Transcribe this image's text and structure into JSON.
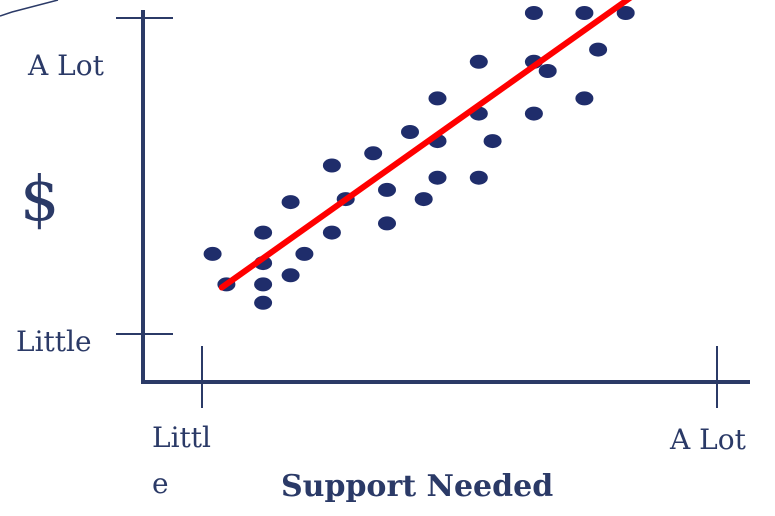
{
  "chart_data": {
    "type": "scatter",
    "xlabel": "Support Needed",
    "ylabel": "$",
    "x_tick_labels": {
      "low_line1": "Littl",
      "low_line2": "e",
      "high": "A Lot"
    },
    "y_tick_labels": {
      "low": "Little",
      "high": "A Lot"
    },
    "xlim": [
      0,
      10
    ],
    "ylim": [
      0,
      10
    ],
    "grid": false,
    "legend": "none",
    "colors": {
      "axis": "#2b3a67",
      "points": "#1f2d6b",
      "trendline": "#ff0000",
      "labels": "#2b3a67"
    },
    "points": [
      {
        "x": 0.1,
        "y": 2.1
      },
      {
        "x": 0.4,
        "y": 1.1
      },
      {
        "x": 1.2,
        "y": 2.8
      },
      {
        "x": 1.2,
        "y": 1.8
      },
      {
        "x": 1.2,
        "y": 1.1
      },
      {
        "x": 1.2,
        "y": 0.5
      },
      {
        "x": 1.8,
        "y": 3.8
      },
      {
        "x": 1.8,
        "y": 1.4
      },
      {
        "x": 2.1,
        "y": 2.1
      },
      {
        "x": 2.7,
        "y": 2.8
      },
      {
        "x": 2.7,
        "y": 5.0
      },
      {
        "x": 3.0,
        "y": 3.9
      },
      {
        "x": 3.6,
        "y": 5.4
      },
      {
        "x": 3.9,
        "y": 4.2
      },
      {
        "x": 3.9,
        "y": 3.1
      },
      {
        "x": 4.4,
        "y": 6.1
      },
      {
        "x": 4.7,
        "y": 3.9
      },
      {
        "x": 5.0,
        "y": 5.8
      },
      {
        "x": 5.0,
        "y": 7.2
      },
      {
        "x": 5.0,
        "y": 4.6
      },
      {
        "x": 5.9,
        "y": 4.6
      },
      {
        "x": 5.9,
        "y": 6.7
      },
      {
        "x": 5.9,
        "y": 8.4
      },
      {
        "x": 6.2,
        "y": 5.8
      },
      {
        "x": 7.1,
        "y": 6.7
      },
      {
        "x": 7.1,
        "y": 8.4
      },
      {
        "x": 7.1,
        "y": 10.0
      },
      {
        "x": 7.4,
        "y": 8.1
      },
      {
        "x": 8.2,
        "y": 10.0
      },
      {
        "x": 8.2,
        "y": 7.2
      },
      {
        "x": 8.5,
        "y": 8.8
      },
      {
        "x": 9.1,
        "y": 10.0
      }
    ],
    "trendline": {
      "x1": 0.3,
      "y1": 1.0,
      "x2": 9.2,
      "y2": 10.5
    }
  }
}
